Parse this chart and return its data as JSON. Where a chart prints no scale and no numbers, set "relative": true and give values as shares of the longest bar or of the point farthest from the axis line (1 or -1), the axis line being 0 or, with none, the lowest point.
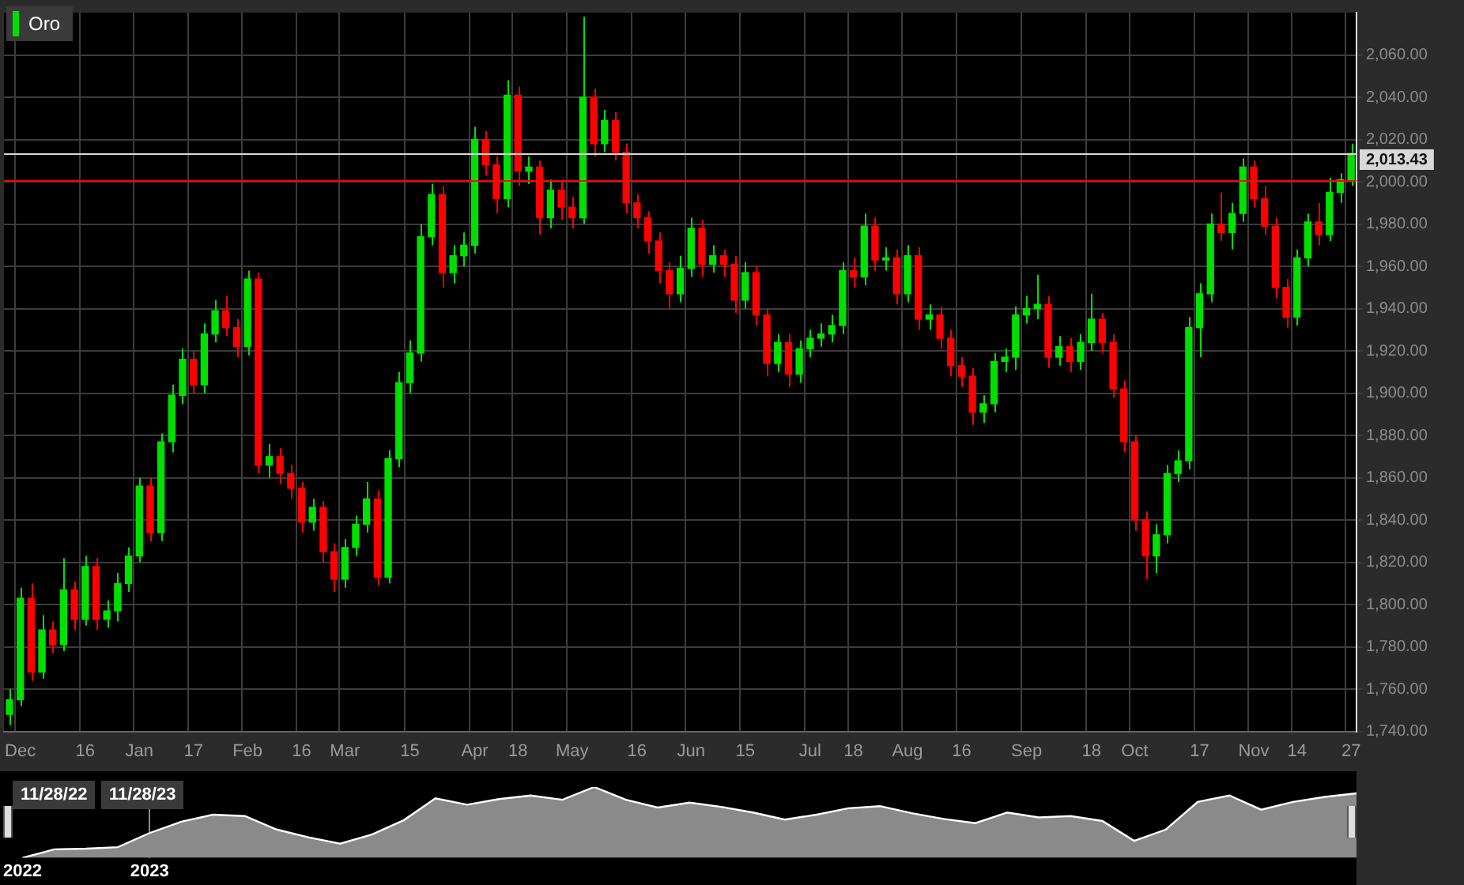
{
  "chart_data": [
    {
      "type": "candlestick",
      "legend": "top left",
      "grid": true,
      "categories": [
        null,
        "Dec",
        null,
        null,
        null,
        null,
        null,
        "16",
        null,
        null,
        null,
        null,
        "Jan",
        null,
        null,
        null,
        null,
        "17",
        null,
        null,
        null,
        null,
        "Feb",
        null,
        null,
        null,
        null,
        "16",
        null,
        null,
        null,
        "Mar",
        null,
        null,
        null,
        null,
        null,
        "15",
        null,
        null,
        null,
        null,
        null,
        "Apr",
        null,
        null,
        null,
        "18",
        null,
        null,
        null,
        null,
        "May",
        null,
        null,
        null,
        null,
        null,
        "16",
        null,
        null,
        null,
        null,
        "Jun",
        null,
        null,
        null,
        null,
        "15",
        null,
        null,
        null,
        null,
        null,
        "Jul",
        null,
        null,
        null,
        "18",
        null,
        null,
        null,
        null,
        "Aug",
        null,
        null,
        null,
        null,
        "16",
        null,
        null,
        null,
        null,
        null,
        "Sep",
        null,
        null,
        null,
        null,
        null,
        "18",
        null,
        null,
        null,
        "Oct",
        null,
        null,
        null,
        null,
        null,
        "17",
        null,
        null,
        null,
        null,
        "Nov",
        null,
        null,
        null,
        "14",
        null,
        null,
        null,
        null,
        "27"
      ],
      "ylim": [
        1740,
        2080
      ],
      "yticks": [
        {
          "value": 1740,
          "label": "1,740.00"
        },
        {
          "value": 1760,
          "label": "1,760.00"
        },
        {
          "value": 1780,
          "label": "1,780.00"
        },
        {
          "value": 1800,
          "label": "1,800.00"
        },
        {
          "value": 1820,
          "label": "1,820.00"
        },
        {
          "value": 1840,
          "label": "1,840.00"
        },
        {
          "value": 1860,
          "label": "1,860.00"
        },
        {
          "value": 1880,
          "label": "1,880.00"
        },
        {
          "value": 1900,
          "label": "1,900.00"
        },
        {
          "value": 1920,
          "label": "1,920.00"
        },
        {
          "value": 1940,
          "label": "1,940.00"
        },
        {
          "value": 1960,
          "label": "1,960.00"
        },
        {
          "value": 1980,
          "label": "1,980.00"
        },
        {
          "value": 2000,
          "label": "2,000.00"
        },
        {
          "value": 2020,
          "label": "2,020.00"
        },
        {
          "value": 2040,
          "label": "2,040.00"
        },
        {
          "value": 2060,
          "label": "2,060.00"
        }
      ],
      "ref_lines": [
        {
          "axis": "y",
          "value": 2001,
          "color": "#ff0000"
        },
        {
          "axis": "y",
          "value": 2013.43,
          "label": "2,013.43",
          "color": "#d8d8d8"
        }
      ],
      "series": [
        {
          "name": "Oro",
          "color": "#00e000",
          "ohlc": [
            [
              1748,
              1760,
              1743,
              1755
            ],
            [
              1755,
              1808,
              1752,
              1803
            ],
            [
              1803,
              1810,
              1764,
              1768
            ],
            [
              1768,
              1795,
              1765,
              1788
            ],
            [
              1788,
              1792,
              1777,
              1781
            ],
            [
              1781,
              1822,
              1778,
              1807
            ],
            [
              1807,
              1811,
              1788,
              1793
            ],
            [
              1793,
              1823,
              1790,
              1818
            ],
            [
              1818,
              1822,
              1788,
              1793
            ],
            [
              1793,
              1802,
              1789,
              1797
            ],
            [
              1797,
              1815,
              1792,
              1810
            ],
            [
              1810,
              1827,
              1806,
              1823
            ],
            [
              1823,
              1860,
              1820,
              1856
            ],
            [
              1856,
              1860,
              1830,
              1834
            ],
            [
              1834,
              1881,
              1830,
              1877
            ],
            [
              1877,
              1904,
              1872,
              1899
            ],
            [
              1899,
              1921,
              1895,
              1916
            ],
            [
              1916,
              1920,
              1900,
              1904
            ],
            [
              1904,
              1933,
              1900,
              1928
            ],
            [
              1928,
              1944,
              1924,
              1939
            ],
            [
              1939,
              1946,
              1927,
              1931
            ],
            [
              1931,
              1935,
              1917,
              1922
            ],
            [
              1922,
              1958,
              1918,
              1954
            ],
            [
              1954,
              1957,
              1862,
              1866
            ],
            [
              1866,
              1876,
              1860,
              1870
            ],
            [
              1870,
              1874,
              1857,
              1862
            ],
            [
              1862,
              1866,
              1850,
              1855
            ],
            [
              1855,
              1858,
              1834,
              1839
            ],
            [
              1839,
              1850,
              1835,
              1846
            ],
            [
              1846,
              1849,
              1820,
              1825
            ],
            [
              1825,
              1829,
              1806,
              1812
            ],
            [
              1812,
              1831,
              1808,
              1827
            ],
            [
              1827,
              1842,
              1823,
              1838
            ],
            [
              1838,
              1858,
              1834,
              1850
            ],
            [
              1850,
              1854,
              1809,
              1813
            ],
            [
              1813,
              1873,
              1810,
              1869
            ],
            [
              1869,
              1910,
              1865,
              1905
            ],
            [
              1905,
              1925,
              1900,
              1919
            ],
            [
              1919,
              1980,
              1915,
              1974
            ],
            [
              1974,
              1999,
              1970,
              1994
            ],
            [
              1994,
              1998,
              1950,
              1957
            ],
            [
              1957,
              1970,
              1952,
              1965
            ],
            [
              1965,
              1976,
              1960,
              1970
            ],
            [
              1970,
              2026,
              1966,
              2020
            ],
            [
              2020,
              2024,
              2003,
              2008
            ],
            [
              2008,
              2012,
              1985,
              1992
            ],
            [
              1992,
              2048,
              1988,
              2041
            ],
            [
              2041,
              2045,
              1998,
              2005
            ],
            [
              2005,
              2012,
              1999,
              2007
            ],
            [
              2007,
              2010,
              1975,
              1983
            ],
            [
              1983,
              2001,
              1978,
              1996
            ],
            [
              1996,
              2000,
              1982,
              1988
            ],
            [
              1988,
              1993,
              1978,
              1983
            ],
            [
              1983,
              2078,
              1980,
              2040
            ],
            [
              2040,
              2044,
              2012,
              2018
            ],
            [
              2018,
              2034,
              2014,
              2029
            ],
            [
              2029,
              2033,
              2010,
              2014
            ],
            [
              2014,
              2018,
              1985,
              1990
            ],
            [
              1990,
              1994,
              1978,
              1983
            ],
            [
              1983,
              1986,
              1966,
              1972
            ],
            [
              1972,
              1976,
              1952,
              1958
            ],
            [
              1958,
              1962,
              1940,
              1947
            ],
            [
              1947,
              1965,
              1943,
              1959
            ],
            [
              1959,
              1983,
              1955,
              1978
            ],
            [
              1978,
              1982,
              1955,
              1961
            ],
            [
              1961,
              1970,
              1957,
              1965
            ],
            [
              1965,
              1968,
              1955,
              1961
            ],
            [
              1961,
              1965,
              1938,
              1944
            ],
            [
              1944,
              1962,
              1940,
              1957
            ],
            [
              1957,
              1960,
              1932,
              1937
            ],
            [
              1937,
              1940,
              1908,
              1914
            ],
            [
              1914,
              1928,
              1910,
              1924
            ],
            [
              1924,
              1928,
              1903,
              1909
            ],
            [
              1909,
              1925,
              1905,
              1921
            ],
            [
              1921,
              1930,
              1917,
              1926
            ],
            [
              1926,
              1933,
              1922,
              1928
            ],
            [
              1928,
              1937,
              1924,
              1932
            ],
            [
              1932,
              1962,
              1928,
              1958
            ],
            [
              1958,
              1964,
              1950,
              1955
            ],
            [
              1955,
              1985,
              1951,
              1979
            ],
            [
              1979,
              1983,
              1958,
              1963
            ],
            [
              1963,
              1969,
              1958,
              1964
            ],
            [
              1964,
              1968,
              1942,
              1947
            ],
            [
              1947,
              1970,
              1943,
              1965
            ],
            [
              1965,
              1969,
              1930,
              1935
            ],
            [
              1935,
              1942,
              1930,
              1937
            ],
            [
              1937,
              1941,
              1921,
              1926
            ],
            [
              1926,
              1930,
              1908,
              1913
            ],
            [
              1913,
              1917,
              1903,
              1908
            ],
            [
              1908,
              1912,
              1885,
              1891
            ],
            [
              1891,
              1899,
              1886,
              1895
            ],
            [
              1895,
              1919,
              1891,
              1915
            ],
            [
              1915,
              1921,
              1910,
              1917
            ],
            [
              1917,
              1941,
              1911,
              1937
            ],
            [
              1937,
              1946,
              1933,
              1940
            ],
            [
              1940,
              1956,
              1935,
              1942
            ],
            [
              1942,
              1946,
              1912,
              1917
            ],
            [
              1917,
              1927,
              1913,
              1922
            ],
            [
              1922,
              1926,
              1910,
              1915
            ],
            [
              1915,
              1928,
              1911,
              1924
            ],
            [
              1924,
              1947,
              1920,
              1935
            ],
            [
              1935,
              1938,
              1919,
              1924
            ],
            [
              1924,
              1928,
              1898,
              1902
            ],
            [
              1902,
              1906,
              1872,
              1877
            ],
            [
              1877,
              1880,
              1835,
              1840
            ],
            [
              1840,
              1844,
              1812,
              1823
            ],
            [
              1823,
              1838,
              1815,
              1833
            ],
            [
              1833,
              1866,
              1829,
              1862
            ],
            [
              1862,
              1873,
              1858,
              1868
            ],
            [
              1868,
              1936,
              1864,
              1931
            ],
            [
              1931,
              1952,
              1917,
              1947
            ],
            [
              1947,
              1985,
              1943,
              1980
            ],
            [
              1980,
              1995,
              1972,
              1976
            ],
            [
              1976,
              1990,
              1968,
              1985
            ],
            [
              1985,
              2011,
              1981,
              2007
            ],
            [
              2007,
              2010,
              1988,
              1992
            ],
            [
              1992,
              1998,
              1975,
              1979
            ],
            [
              1979,
              1983,
              1945,
              1950
            ],
            [
              1950,
              1954,
              1931,
              1936
            ],
            [
              1936,
              1968,
              1932,
              1964
            ],
            [
              1964,
              1985,
              1960,
              1981
            ],
            [
              1981,
              1990,
              1970,
              1975
            ],
            [
              1975,
              2002,
              1972,
              1995
            ],
            [
              1995,
              2004,
              1990,
              2001
            ],
            [
              2001,
              2018,
              1998,
              2013.43
            ]
          ],
          "colors": [
            "#00e000",
            "#00e000",
            "#ff0000",
            "#00e000",
            "#ff0000",
            "#00e000",
            "#ff0000",
            "#00e000",
            "#ff0000",
            "#00e000",
            "#00e000",
            "#00e000",
            "#00e000",
            "#ff0000",
            "#00e000",
            "#00e000",
            "#00e000",
            "#ff0000",
            "#00e000",
            "#00e000",
            "#ff0000",
            "#ff0000",
            "#00e000",
            "#ff0000",
            "#00e000",
            "#ff0000",
            "#ff0000",
            "#ff0000",
            "#00e000",
            "#ff0000",
            "#ff0000",
            "#00e000",
            "#00e000",
            "#00e000",
            "#ff0000",
            "#00e000",
            "#00e000",
            "#00e000",
            "#00e000",
            "#00e000",
            "#ff0000",
            "#00e000",
            "#00e000",
            "#00e000",
            "#ff0000",
            "#ff0000",
            "#00e000",
            "#ff0000",
            "#00e000",
            "#ff0000",
            "#00e000",
            "#ff0000",
            "#ff0000",
            "#00e000",
            "#ff0000",
            "#00e000",
            "#ff0000",
            "#ff0000",
            "#ff0000",
            "#ff0000",
            "#ff0000",
            "#ff0000",
            "#00e000",
            "#00e000",
            "#ff0000",
            "#00e000",
            "#ff0000",
            "#ff0000",
            "#00e000",
            "#ff0000",
            "#ff0000",
            "#00e000",
            "#ff0000",
            "#00e000",
            "#00e000",
            "#00e000",
            "#00e000",
            "#00e000",
            "#ff0000",
            "#00e000",
            "#ff0000",
            "#00e000",
            "#ff0000",
            "#00e000",
            "#ff0000",
            "#00e000",
            "#ff0000",
            "#ff0000",
            "#ff0000",
            "#ff0000",
            "#00e000",
            "#00e000",
            "#00e000",
            "#00e000",
            "#00e000",
            "#00e000",
            "#ff0000",
            "#00e000",
            "#ff0000",
            "#00e000",
            "#00e000",
            "#ff0000",
            "#ff0000",
            "#ff0000",
            "#ff0000",
            "#ff0000",
            "#00e000",
            "#00e000",
            "#00e000",
            "#00e000",
            "#00e000",
            "#00e000",
            "#ff0000",
            "#00e000",
            "#00e000",
            "#ff0000",
            "#ff0000",
            "#ff0000",
            "#ff0000",
            "#00e000",
            "#00e000",
            "#ff0000",
            "#00e000",
            "#00e000",
            "#00e000"
          ]
        }
      ]
    },
    {
      "type": "area",
      "relative": true,
      "grid": "x",
      "categories": [
        "2022",
        null,
        null,
        null,
        "2023",
        null,
        null,
        null,
        null,
        null,
        null,
        null,
        null,
        null,
        null,
        null,
        null,
        null,
        null,
        null,
        null,
        null,
        null,
        null,
        null,
        null,
        null,
        null,
        null,
        null,
        null,
        null,
        null,
        null,
        null,
        null,
        null,
        null,
        null,
        null,
        null,
        null,
        null
      ],
      "annotations": [
        "11/28/22",
        "11/28/23"
      ],
      "series": [
        {
          "color": "#ffffff",
          "values": [
            0,
            0.12,
            0.13,
            0.15,
            0.35,
            0.51,
            0.61,
            0.59,
            0.4,
            0.29,
            0.2,
            0.33,
            0.53,
            0.84,
            0.75,
            0.83,
            0.88,
            0.82,
            1,
            0.82,
            0.71,
            0.78,
            0.72,
            0.64,
            0.54,
            0.61,
            0.7,
            0.73,
            0.63,
            0.55,
            0.49,
            0.64,
            0.57,
            0.59,
            0.52,
            0.24,
            0.4,
            0.79,
            0.88,
            0.68,
            0.79,
            0.86,
            0.91
          ]
        }
      ]
    }
  ]
}
